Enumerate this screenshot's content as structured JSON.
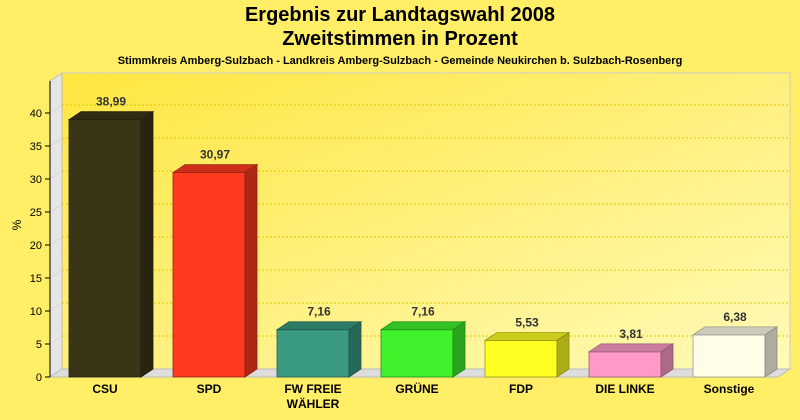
{
  "title_line1": "Ergebnis zur Landtagswahl 2008",
  "title_line2": "Zweitstimmen in Prozent",
  "subtitle": "Stimmkreis Amberg-Sulzbach - Landkreis Amberg-Sulzbach - Gemeinde Neukirchen b. Sulzbach-Rosenberg",
  "chart_data": {
    "type": "bar",
    "title": "Ergebnis zur Landtagswahl 2008 Zweitstimmen in Prozent",
    "ylabel": "%",
    "ylim": [
      0,
      40
    ],
    "yticks": [
      0,
      5,
      10,
      15,
      20,
      25,
      30,
      35,
      40
    ],
    "grid": true,
    "categories": [
      {
        "lines": [
          "CSU"
        ]
      },
      {
        "lines": [
          "SPD"
        ]
      },
      {
        "lines": [
          "FW FREIE",
          "WÄHLER"
        ]
      },
      {
        "lines": [
          "GRÜNE"
        ]
      },
      {
        "lines": [
          "FDP"
        ]
      },
      {
        "lines": [
          "DIE LINKE"
        ]
      },
      {
        "lines": [
          "Sonstige"
        ]
      }
    ],
    "values": [
      38.99,
      30.97,
      7.16,
      7.16,
      5.53,
      3.81,
      6.38
    ],
    "value_labels": [
      "38,99",
      "30,97",
      "7,16",
      "7,16",
      "5,53",
      "3,81",
      "6,38"
    ],
    "colors": [
      "#3b3518",
      "#ff3a1f",
      "#3a9a82",
      "#3ff22c",
      "#ffff22",
      "#ff9ac8",
      "#fffde8"
    ]
  }
}
